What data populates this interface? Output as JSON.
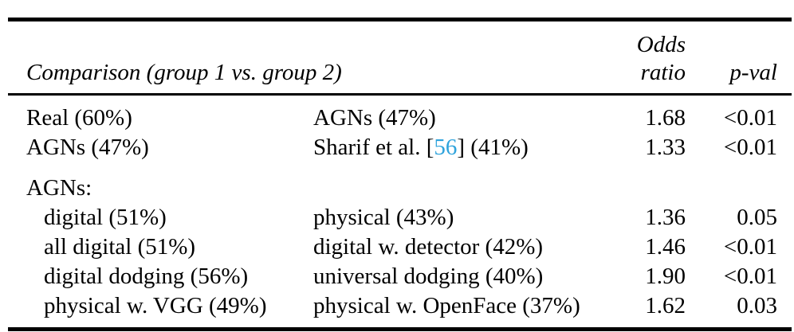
{
  "table": {
    "header": {
      "comparison": "Comparison (group 1 vs. group 2)",
      "odds_line1": "Odds",
      "odds_line2": "ratio",
      "pval": "p-val"
    },
    "rows": [
      {
        "group1": "Real (60%)",
        "group2": "AGNs (47%)",
        "odds": "1.68",
        "pval": "<0.01"
      },
      {
        "group1": "AGNs (47%)",
        "group2_prefix": "Sharif et al. [",
        "group2_cite": "56",
        "group2_suffix": "] (41%)",
        "odds": "1.33",
        "pval": "<0.01"
      },
      {
        "section": "AGNs:"
      },
      {
        "group1": "digital (51%)",
        "group2": "physical (43%)",
        "odds": "1.36",
        "pval": "0.05"
      },
      {
        "group1": "all digital (51%)",
        "group2": "digital w. detector (42%)",
        "odds": "1.46",
        "pval": "<0.01"
      },
      {
        "group1": "digital dodging (56%)",
        "group2": "universal dodging (40%)",
        "odds": "1.90",
        "pval": "<0.01"
      },
      {
        "group1": "physical w. VGG (49%)",
        "group2": "physical w. OpenFace (37%)",
        "odds": "1.62",
        "pval": "0.03"
      }
    ],
    "colors": {
      "citation": "#2fa3dc",
      "rule": "#000000",
      "text": "#000000",
      "background": "#ffffff"
    }
  }
}
